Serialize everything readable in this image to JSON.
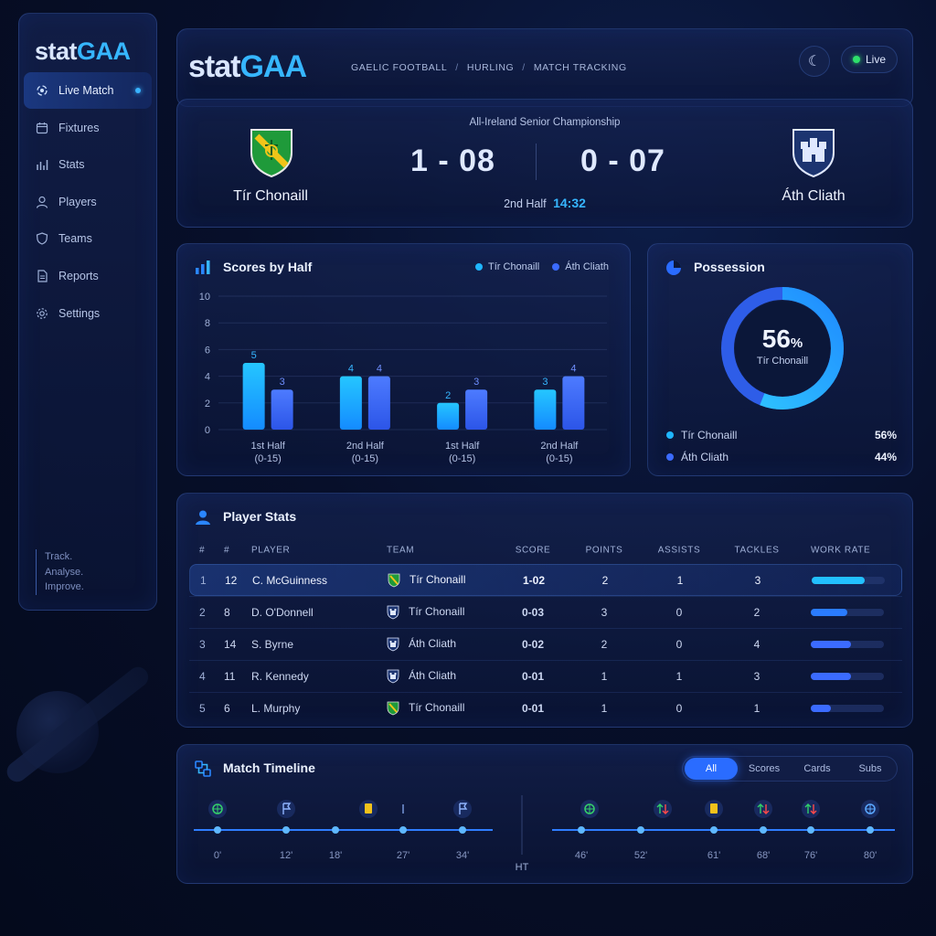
{
  "brand": {
    "part1": "stat",
    "part2": "GAA"
  },
  "colors": {
    "accent": "#36b6ff",
    "team_a": "#1fb6ff",
    "team_b": "#3b6bff",
    "live": "#2ee06b"
  },
  "sidebar": {
    "items": [
      {
        "label": "Live Match",
        "icon": "live-icon",
        "active": true
      },
      {
        "label": "Fixtures",
        "icon": "calendar-icon"
      },
      {
        "label": "Stats",
        "icon": "bar-chart-icon"
      },
      {
        "label": "Players",
        "icon": "user-icon"
      },
      {
        "label": "Teams",
        "icon": "shield-icon"
      },
      {
        "label": "Reports",
        "icon": "document-icon"
      },
      {
        "label": "Settings",
        "icon": "gear-icon"
      }
    ],
    "tagline": [
      "Track.",
      "Analyse.",
      "Improve."
    ]
  },
  "header": {
    "breadcrumbs": [
      "GAELIC FOOTBALL",
      "HURLING",
      "MATCH TRACKING"
    ],
    "live_label": "Live"
  },
  "scoreboard": {
    "competition": "All-Ireland Senior Championship",
    "home": {
      "name": "Tír Chonaill",
      "score": "1 - 08"
    },
    "away": {
      "name": "Áth Cliath",
      "score": "0 - 07"
    },
    "period": "2nd Half",
    "clock": "14:32"
  },
  "scores_by_half": {
    "title": "Scores by Half",
    "legend": [
      "Tír Chonaill",
      "Áth Cliath"
    ]
  },
  "chart_data": {
    "type": "bar",
    "title": "Scores by Half",
    "categories": [
      "1st Half\n(0-15)",
      "2nd Half\n(0-15)",
      "1st Half\n(0-15)",
      "2nd Half\n(0-15)"
    ],
    "series": [
      {
        "name": "Tír Chonaill",
        "values": [
          5,
          4,
          2,
          3
        ]
      },
      {
        "name": "Áth Cliath",
        "values": [
          3,
          4,
          3,
          4
        ]
      }
    ],
    "ylim": [
      0,
      10
    ],
    "yticks": [
      0,
      2,
      4,
      6,
      8,
      10
    ],
    "grid": true,
    "legend_position": "top-right"
  },
  "possession": {
    "title": "Possession",
    "center_value": "56",
    "center_unit": "%",
    "center_label": "Tír Chonaill",
    "home_fraction": 0.56,
    "rows": [
      {
        "team": "Tír Chonaill",
        "value": "56%"
      },
      {
        "team": "Áth Cliath",
        "value": "44%"
      }
    ]
  },
  "player_stats": {
    "title": "Player Stats",
    "columns": [
      "#",
      "#",
      "PLAYER",
      "TEAM",
      "SCORE",
      "POINTS",
      "ASSISTS",
      "TACKLES",
      "WORK RATE"
    ],
    "rows": [
      {
        "rank": "1",
        "num": "12",
        "player": "C. McGuinness",
        "team": "Tír Chonaill",
        "crest": "donegal",
        "score": "1-02",
        "points": "2",
        "assists": "1",
        "tackles": "3",
        "work_rate": 0.72
      },
      {
        "rank": "2",
        "num": "8",
        "player": "D. O'Donnell",
        "team": "Tír Chonaill",
        "crest": "dublin",
        "score": "0-03",
        "points": "3",
        "assists": "0",
        "tackles": "2",
        "work_rate": 0.5
      },
      {
        "rank": "3",
        "num": "14",
        "player": "S. Byrne",
        "team": "Áth Cliath",
        "crest": "dublin",
        "score": "0-02",
        "points": "2",
        "assists": "0",
        "tackles": "4",
        "work_rate": 0.55
      },
      {
        "rank": "4",
        "num": "11",
        "player": "R. Kennedy",
        "team": "Áth Cliath",
        "crest": "dublin",
        "score": "0-01",
        "points": "1",
        "assists": "1",
        "tackles": "3",
        "work_rate": 0.55
      },
      {
        "rank": "5",
        "num": "6",
        "player": "L. Murphy",
        "team": "Tír Chonaill",
        "crest": "donegal",
        "score": "0-01",
        "points": "1",
        "assists": "0",
        "tackles": "1",
        "work_rate": 0.27
      }
    ]
  },
  "timeline": {
    "title": "Match Timeline",
    "filters": [
      "All",
      "Scores",
      "Cards",
      "Subs"
    ],
    "active_filter": "All",
    "half_label": "HT",
    "ticks": [
      "0'",
      "12'",
      "18'",
      "27'",
      "34'",
      "46'",
      "52'",
      "61'",
      "68'",
      "76'",
      "80'"
    ],
    "events": [
      {
        "minute": 0,
        "icon": "ball-icon"
      },
      {
        "minute": 12,
        "icon": "flag-icon"
      },
      {
        "minute": 27,
        "icon": "yellow-card-icon"
      },
      {
        "minute": 33,
        "icon": "marker-icon"
      },
      {
        "minute": 42,
        "icon": "flag-icon"
      },
      {
        "minute": 56,
        "icon": "ball-icon"
      },
      {
        "minute": 63,
        "icon": "substitution-icon"
      },
      {
        "minute": 68,
        "icon": "yellow-card-icon"
      },
      {
        "minute": 72,
        "icon": "substitution-icon"
      },
      {
        "minute": 76,
        "icon": "substitution-icon"
      },
      {
        "minute": 80,
        "icon": "ball-icon"
      }
    ]
  }
}
